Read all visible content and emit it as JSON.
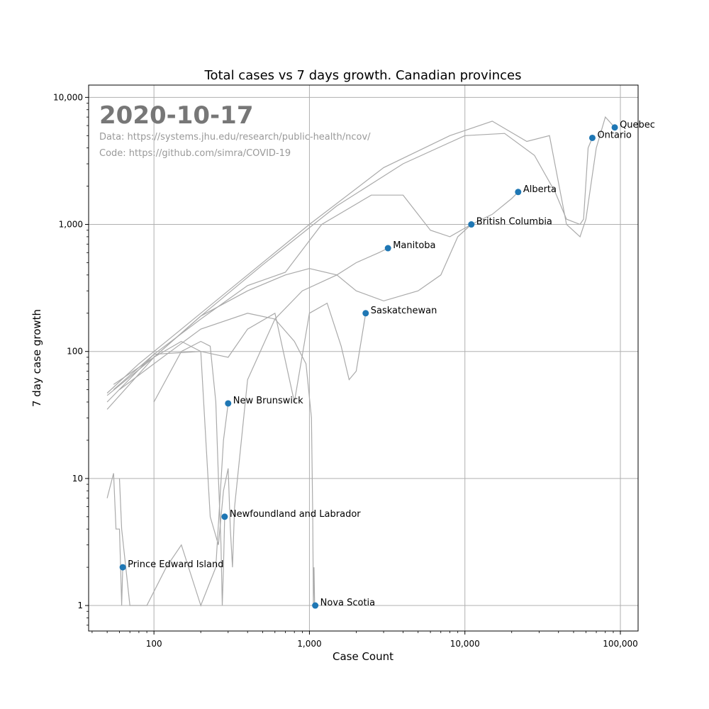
{
  "chart_data": {
    "type": "scatter",
    "title": "Total cases vs 7 days growth. Canadian provinces",
    "xlabel": "Case Count",
    "ylabel": "7 day case growth",
    "xscale": "log",
    "yscale": "log",
    "xlim": [
      38,
      130000
    ],
    "ylim": [
      0.63,
      12500
    ],
    "grid": true,
    "x_ticks": [
      {
        "value": 100,
        "label": "100"
      },
      {
        "value": 1000,
        "label": "1,000"
      },
      {
        "value": 10000,
        "label": "10,000"
      },
      {
        "value": 100000,
        "label": "100,000"
      }
    ],
    "y_ticks": [
      {
        "value": 1,
        "label": "1"
      },
      {
        "value": 10,
        "label": "10"
      },
      {
        "value": 100,
        "label": "100"
      },
      {
        "value": 1000,
        "label": "1,000"
      },
      {
        "value": 10000,
        "label": "10,000"
      }
    ],
    "annotations": {
      "date": "2020-10-17",
      "data_source": "Data: https://systems.jhu.edu/research/public-health/ncov/",
      "code_source": "Code: https://github.com/simra/COVID-19"
    },
    "colors": {
      "points": "#1f77b4",
      "history_lines": "#aaaaaa",
      "grid": "#b0b0b0"
    },
    "points": [
      {
        "label": "Quebec",
        "x": 92000,
        "y": 5800
      },
      {
        "label": "Ontario",
        "x": 66000,
        "y": 4800
      },
      {
        "label": "Alberta",
        "x": 22000,
        "y": 1800
      },
      {
        "label": "British Columbia",
        "x": 11000,
        "y": 1000
      },
      {
        "label": "Manitoba",
        "x": 3200,
        "y": 650
      },
      {
        "label": "Saskatchewan",
        "x": 2300,
        "y": 200
      },
      {
        "label": "New Brunswick",
        "x": 300,
        "y": 39
      },
      {
        "label": "Newfoundland and Labrador",
        "x": 285,
        "y": 5
      },
      {
        "label": "Prince Edward Island",
        "x": 63,
        "y": 2
      },
      {
        "label": "Nova Scotia",
        "x": 1090,
        "y": 1
      }
    ],
    "trajectories": [
      {
        "province": "Quebec",
        "points": [
          [
            50,
            47
          ],
          [
            80,
            80
          ],
          [
            150,
            150
          ],
          [
            300,
            300
          ],
          [
            1000,
            1000
          ],
          [
            3000,
            2800
          ],
          [
            8000,
            5000
          ],
          [
            15000,
            6500
          ],
          [
            25000,
            4500
          ],
          [
            35000,
            5000
          ],
          [
            45000,
            1000
          ],
          [
            55000,
            800
          ],
          [
            60000,
            1100
          ],
          [
            70000,
            4000
          ],
          [
            80000,
            7000
          ],
          [
            92000,
            5800
          ]
        ]
      },
      {
        "province": "Ontario",
        "points": [
          [
            50,
            45
          ],
          [
            100,
            90
          ],
          [
            200,
            190
          ],
          [
            500,
            480
          ],
          [
            1500,
            1400
          ],
          [
            4000,
            3000
          ],
          [
            10000,
            5000
          ],
          [
            18000,
            5200
          ],
          [
            28000,
            3500
          ],
          [
            38000,
            1800
          ],
          [
            45000,
            1100
          ],
          [
            55000,
            1000
          ],
          [
            58000,
            1100
          ],
          [
            62000,
            4000
          ],
          [
            66000,
            4800
          ]
        ]
      },
      {
        "province": "Alberta",
        "points": [
          [
            50,
            40
          ],
          [
            100,
            95
          ],
          [
            200,
            180
          ],
          [
            400,
            330
          ],
          [
            700,
            420
          ],
          [
            1200,
            1000
          ],
          [
            2500,
            1700
          ],
          [
            4000,
            1700
          ],
          [
            6000,
            900
          ],
          [
            8000,
            800
          ],
          [
            11000,
            1000
          ],
          [
            15000,
            1200
          ],
          [
            20000,
            1600
          ],
          [
            22000,
            1800
          ]
        ]
      },
      {
        "province": "British Columbia",
        "points": [
          [
            50,
            35
          ],
          [
            100,
            90
          ],
          [
            200,
            190
          ],
          [
            400,
            300
          ],
          [
            700,
            400
          ],
          [
            1000,
            450
          ],
          [
            1500,
            400
          ],
          [
            2000,
            300
          ],
          [
            3000,
            250
          ],
          [
            5000,
            300
          ],
          [
            7000,
            400
          ],
          [
            9000,
            800
          ],
          [
            11000,
            1000
          ]
        ]
      },
      {
        "province": "Manitoba",
        "points": [
          [
            55,
            55
          ],
          [
            100,
            90
          ],
          [
            150,
            120
          ],
          [
            200,
            100
          ],
          [
            230,
            5
          ],
          [
            260,
            3
          ],
          [
            280,
            8
          ],
          [
            300,
            12
          ],
          [
            310,
            4
          ],
          [
            320,
            2
          ],
          [
            330,
            6
          ],
          [
            400,
            60
          ],
          [
            600,
            180
          ],
          [
            900,
            300
          ],
          [
            1500,
            400
          ],
          [
            2000,
            500
          ],
          [
            2800,
            600
          ],
          [
            3200,
            650
          ]
        ]
      },
      {
        "province": "Saskatchewan",
        "points": [
          [
            55,
            50
          ],
          [
            100,
            95
          ],
          [
            200,
            100
          ],
          [
            300,
            90
          ],
          [
            400,
            150
          ],
          [
            600,
            200
          ],
          [
            800,
            40
          ],
          [
            1000,
            200
          ],
          [
            1300,
            240
          ],
          [
            1600,
            110
          ],
          [
            1800,
            60
          ],
          [
            2000,
            70
          ],
          [
            2300,
            200
          ]
        ]
      },
      {
        "province": "New Brunswick",
        "points": [
          [
            60,
            10
          ],
          [
            62,
            4
          ],
          [
            70,
            1
          ],
          [
            90,
            1
          ],
          [
            120,
            2
          ],
          [
            150,
            3
          ],
          [
            200,
            1
          ],
          [
            250,
            2
          ],
          [
            280,
            20
          ],
          [
            300,
            39
          ]
        ]
      },
      {
        "province": "Newfoundland and Labrador",
        "points": [
          [
            100,
            40
          ],
          [
            150,
            100
          ],
          [
            200,
            120
          ],
          [
            230,
            110
          ],
          [
            250,
            40
          ],
          [
            260,
            10
          ],
          [
            270,
            3
          ],
          [
            275,
            1
          ],
          [
            280,
            2
          ],
          [
            285,
            5
          ]
        ]
      },
      {
        "province": "Prince Edward Island",
        "points": [
          [
            50,
            7
          ],
          [
            55,
            11
          ],
          [
            57,
            4
          ],
          [
            60,
            4
          ],
          [
            61,
            2
          ],
          [
            62,
            1
          ],
          [
            63,
            2
          ]
        ]
      },
      {
        "province": "Nova Scotia",
        "points": [
          [
            60,
            50
          ],
          [
            100,
            80
          ],
          [
            200,
            150
          ],
          [
            400,
            200
          ],
          [
            600,
            180
          ],
          [
            800,
            120
          ],
          [
            950,
            80
          ],
          [
            1030,
            30
          ],
          [
            1050,
            5
          ],
          [
            1060,
            1
          ],
          [
            1070,
            2
          ],
          [
            1080,
            1
          ],
          [
            1090,
            1
          ]
        ]
      }
    ]
  }
}
